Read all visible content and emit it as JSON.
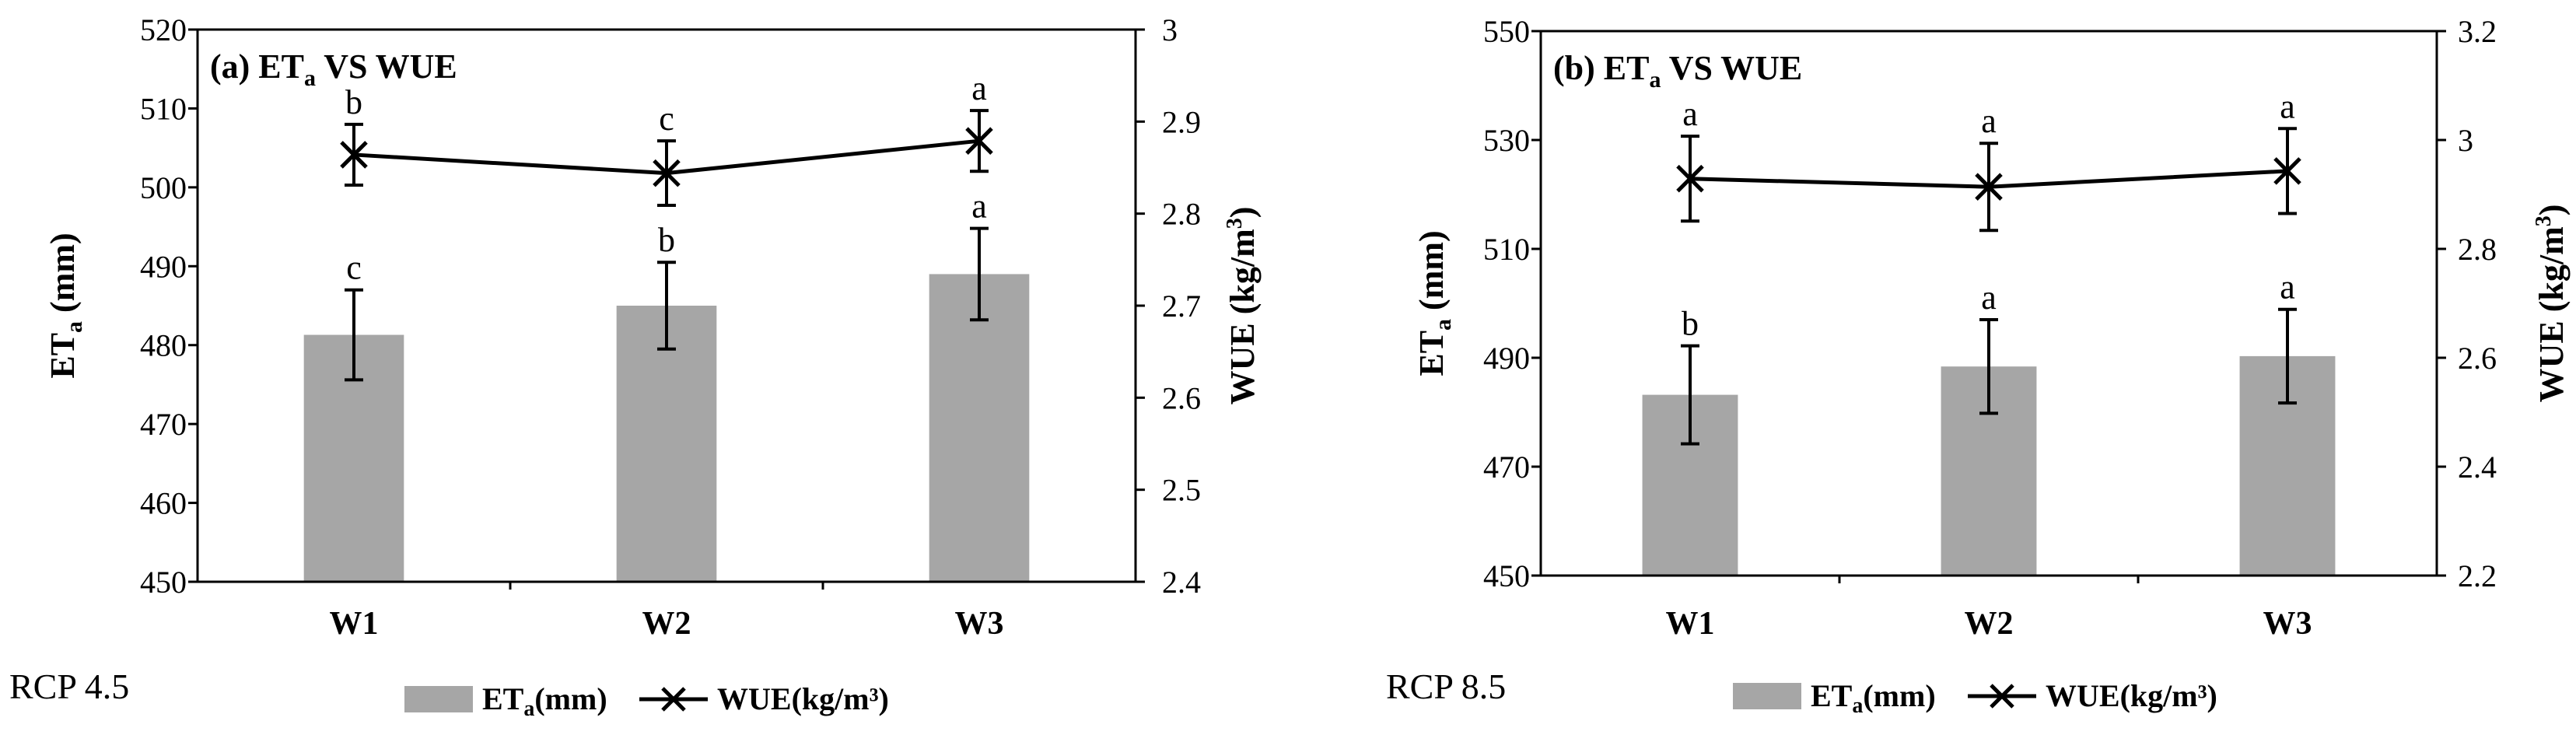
{
  "chart_data": [
    {
      "type": "bar",
      "title_main": "(a) ET",
      "title_sub": "a",
      "title_rest": " VS WUE",
      "scenario_label": "RCP 4.5",
      "categories": [
        "W1",
        "W2",
        "W3"
      ],
      "ylabel_main": "ET",
      "ylabel_sub": "a",
      "ylabel_unit": " (mm)",
      "y2label": "WUE (kg/m",
      "y2label_sup": "3",
      "y2label_end": ")",
      "ylim": [
        450,
        520
      ],
      "yticks": [
        450,
        460,
        470,
        480,
        490,
        500,
        510,
        520
      ],
      "y2lim": [
        2.4,
        3.0
      ],
      "y2ticks": [
        2.4,
        2.5,
        2.6,
        2.7,
        2.8,
        2.9,
        3.0
      ],
      "y2tick_labels": [
        "2.4",
        "2.5",
        "2.6",
        "2.7",
        "2.8",
        "2.9",
        "3"
      ],
      "series": [
        {
          "name": "ETa(mm)",
          "axis": "left",
          "kind": "bar",
          "color": "#a6a6a6",
          "values": [
            481.3,
            485.0,
            489.0
          ],
          "errors": [
            5.7,
            5.5,
            5.8
          ],
          "letters": [
            "c",
            "b",
            "a"
          ]
        },
        {
          "name": "WUE(kg/m³)",
          "axis": "right",
          "kind": "line",
          "marker": "x",
          "color": "#000000",
          "values": [
            2.864,
            2.844,
            2.879
          ],
          "errors": [
            0.033,
            0.035,
            0.033
          ],
          "letters": [
            "b",
            "c",
            "a"
          ]
        }
      ],
      "legend": {
        "bar_label_main": "ET",
        "bar_label_sub": "a",
        "bar_label_rest": "(mm)",
        "line_label": "WUE(kg/m³)"
      }
    },
    {
      "type": "bar",
      "title_main": "(b) ET",
      "title_sub": "a",
      "title_rest": " VS WUE",
      "scenario_label": "RCP 8.5",
      "categories": [
        "W1",
        "W2",
        "W3"
      ],
      "ylabel_main": "ET",
      "ylabel_sub": "a",
      "ylabel_unit": " (mm)",
      "y2label": "WUE (kg/m",
      "y2label_sup": "3",
      "y2label_end": ")",
      "ylim": [
        450,
        550
      ],
      "yticks": [
        450,
        470,
        490,
        510,
        530,
        550
      ],
      "y2lim": [
        2.2,
        3.2
      ],
      "y2ticks": [
        2.2,
        2.4,
        2.6,
        2.8,
        3.0,
        3.2
      ],
      "y2tick_labels": [
        "2.2",
        "2.4",
        "2.6",
        "2.8",
        "3",
        "3.2"
      ],
      "series": [
        {
          "name": "ETa(mm)",
          "axis": "left",
          "kind": "bar",
          "color": "#a6a6a6",
          "values": [
            483.2,
            488.4,
            490.3
          ],
          "errors": [
            9.0,
            8.6,
            8.6
          ],
          "letters": [
            "b",
            "a",
            "a"
          ]
        },
        {
          "name": "WUE(kg/m³)",
          "axis": "right",
          "kind": "line",
          "marker": "x",
          "color": "#000000",
          "values": [
            2.929,
            2.914,
            2.943
          ],
          "errors": [
            0.078,
            0.08,
            0.078
          ],
          "letters": [
            "a",
            "a",
            "a"
          ]
        }
      ],
      "legend": {
        "bar_label_main": "ET",
        "bar_label_sub": "a",
        "bar_label_rest": "(mm)",
        "line_label": "WUE(kg/m³)"
      }
    }
  ]
}
